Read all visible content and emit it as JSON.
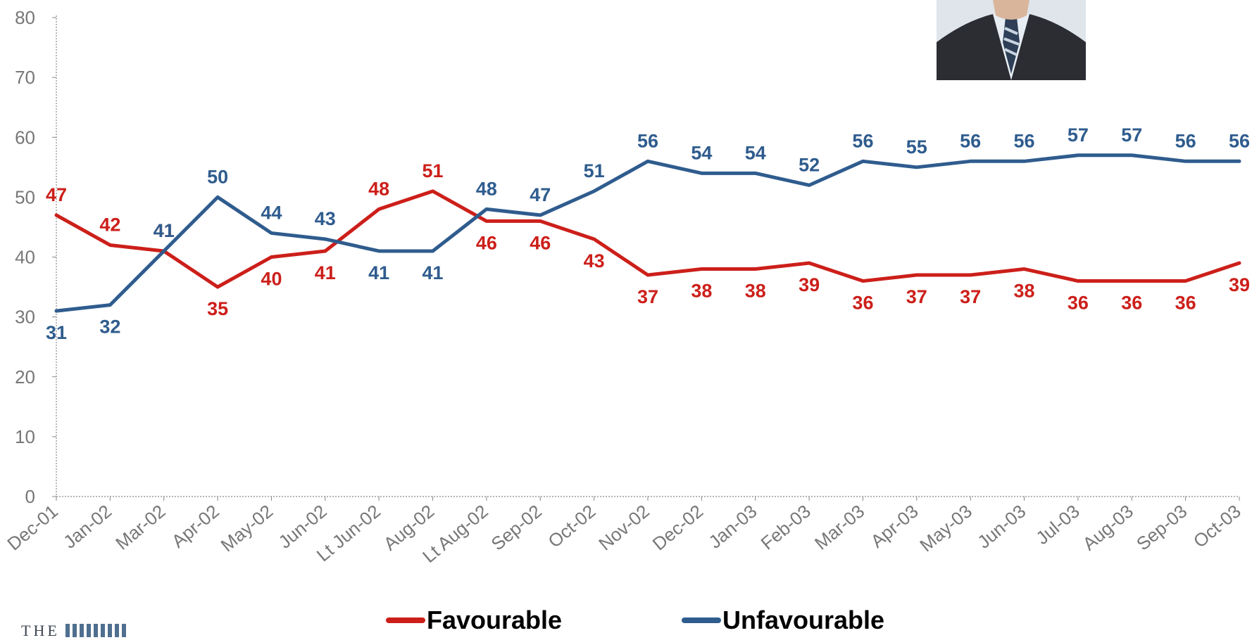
{
  "chart_data": {
    "type": "line",
    "categories": [
      "Dec-01",
      "Jan-02",
      "Mar-02",
      "Apr-02",
      "May-02",
      "Jun-02",
      "Lt Jun-02",
      "Aug-02",
      "Lt Aug-02",
      "Sep-02",
      "Oct-02",
      "Nov-02",
      "Dec-02",
      "Jan-03",
      "Feb-03",
      "Mar-03",
      "Apr-03",
      "May-03",
      "Jun-03",
      "Jul-03",
      "Aug-03",
      "Sep-03",
      "Oct-03"
    ],
    "series": [
      {
        "name": "Favourable",
        "color": "#cc1f1a",
        "values": [
          47,
          42,
          41,
          35,
          40,
          41,
          48,
          51,
          46,
          46,
          43,
          37,
          38,
          38,
          39,
          36,
          37,
          37,
          38,
          36,
          36,
          36,
          39
        ]
      },
      {
        "name": "Unfavourable",
        "color": "#2f5c8e",
        "values": [
          31,
          32,
          41,
          50,
          44,
          43,
          41,
          41,
          48,
          47,
          51,
          56,
          54,
          54,
          52,
          56,
          55,
          56,
          56,
          57,
          57,
          56,
          56
        ]
      }
    ],
    "y_ticks": [
      "0",
      "10",
      "20",
      "30",
      "40",
      "50",
      "60",
      "70",
      "80"
    ],
    "ylim": [
      0,
      80
    ],
    "grid": false,
    "legend_position": "bottom"
  },
  "logo": {
    "text": "THE"
  },
  "photo": {
    "description_icon": "person-photo-icon"
  }
}
